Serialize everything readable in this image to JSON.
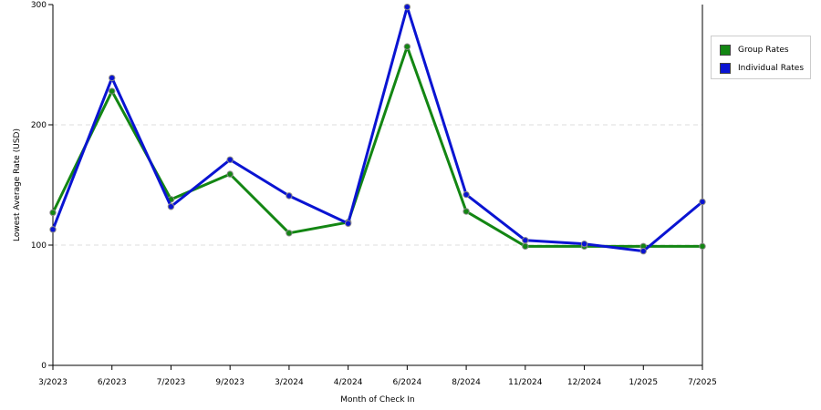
{
  "chart_data": {
    "type": "line",
    "categories": [
      "3/2023",
      "6/2023",
      "7/2023",
      "9/2023",
      "3/2024",
      "4/2024",
      "6/2024",
      "8/2024",
      "11/2024",
      "12/2024",
      "1/2025",
      "7/2025"
    ],
    "series": [
      {
        "name": "Group Rates",
        "color": "#138613",
        "values": [
          127,
          228,
          138,
          159,
          110,
          119,
          265,
          128,
          99,
          99,
          99,
          99
        ]
      },
      {
        "name": "Individual Rates",
        "color": "#0a14d2",
        "values": [
          113,
          239,
          132,
          171,
          141,
          118,
          298,
          142,
          104,
          101,
          95,
          136
        ]
      }
    ],
    "xlabel": "Month of Check In",
    "ylabel": "Lowest Average Rate (USD)",
    "ylim": [
      0,
      300
    ],
    "yticks": [
      0,
      100,
      200,
      300
    ],
    "grid": true,
    "legend_position": "top-right"
  }
}
